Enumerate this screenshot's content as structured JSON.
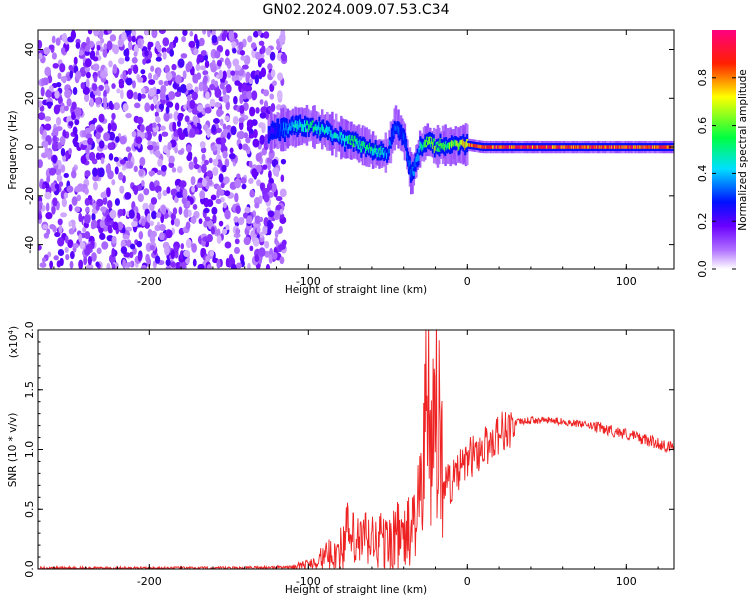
{
  "title": "GN02.2024.009.07.53.C34",
  "chart_data": [
    {
      "type": "heatmap",
      "xlabel": "Height of straight line (km)",
      "ylabel": "Frequency (Hz)",
      "xlim": [
        -270,
        130
      ],
      "ylim": [
        -50,
        48
      ],
      "xticks": [
        -200,
        -100,
        0,
        100
      ],
      "xtick_labels": [
        "-200",
        "-100",
        "0",
        "100"
      ],
      "yticks": [
        -40,
        -20,
        0,
        20,
        40
      ],
      "ytick_labels": [
        "-40",
        "-20",
        "0",
        "20",
        "40"
      ],
      "colorbar": {
        "label": "Normalized spectral amplitude",
        "range": [
          0,
          1
        ],
        "ticks": [
          0.0,
          0.2,
          0.4,
          0.6,
          0.8
        ],
        "tick_labels": [
          "0.0",
          "0.2",
          "0.4",
          "0.6",
          "0.8"
        ],
        "colormap": "rainbow",
        "color_stops": [
          "#ffffff",
          "#8a00ff",
          "#0000ff",
          "#00ffff",
          "#00ff00",
          "#ffff00",
          "#ff0000",
          "#ff0080"
        ]
      },
      "noise_region": {
        "x": [
          -270,
          -115
        ],
        "amplitude": 0.15
      },
      "signal_track": {
        "x": [
          -125,
          -110,
          -100,
          -90,
          -80,
          -70,
          -60,
          -55,
          -50,
          -45,
          -40,
          -35,
          -30,
          -25,
          -20,
          -15,
          -10,
          -5,
          0,
          10,
          30,
          60,
          90,
          130
        ],
        "y": [
          6,
          8,
          9,
          7,
          4,
          2,
          -1,
          -3,
          -2,
          9,
          4,
          -12,
          -1,
          3,
          0,
          1,
          0,
          1,
          1,
          0,
          0,
          0,
          0,
          0
        ],
        "amplitude": [
          0.2,
          0.4,
          0.5,
          0.45,
          0.45,
          0.5,
          0.5,
          0.45,
          0.35,
          0.3,
          0.3,
          0.3,
          0.45,
          0.55,
          0.6,
          0.55,
          0.6,
          0.6,
          0.8,
          0.85,
          0.85,
          0.85,
          0.85,
          0.85
        ]
      }
    },
    {
      "type": "line",
      "xlabel": "Height of straight line (km)",
      "ylabel": "SNR (10 * v/v)",
      "y_multiplier": "(x10",
      "y_multiplier_exponent": "4",
      "y_multiplier_close": ")",
      "xlim": [
        -270,
        130
      ],
      "ylim": [
        0,
        2.0
      ],
      "xticks": [
        -200,
        -100,
        0,
        100
      ],
      "xtick_labels": [
        "-200",
        "-100",
        "0",
        "100"
      ],
      "yticks": [
        0.0,
        0.5,
        1.0,
        1.5,
        2.0
      ],
      "ytick_labels": [
        "0.0",
        "0.5",
        "1.0",
        "1.5",
        "2.0"
      ],
      "color": "#ee2222",
      "series": [
        {
          "x": [
            -270,
            -200,
            -150,
            -110,
            -100,
            -90,
            -80,
            -75,
            -70,
            -65,
            -60,
            -55,
            -50,
            -45,
            -40,
            -35,
            -30,
            -25,
            -22,
            -20,
            -18,
            -15,
            -10,
            -5,
            0,
            5,
            10,
            15,
            20,
            30,
            40,
            50,
            60,
            70,
            80,
            90,
            100,
            110,
            120,
            130
          ],
          "y": [
            0.01,
            0.01,
            0.01,
            0.02,
            0.05,
            0.12,
            0.2,
            0.35,
            0.25,
            0.3,
            0.28,
            0.3,
            0.25,
            0.35,
            0.3,
            0.4,
            0.6,
            1.75,
            1.0,
            2.0,
            1.3,
            0.8,
            0.75,
            0.85,
            0.95,
            1.0,
            1.05,
            1.1,
            1.18,
            1.23,
            1.25,
            1.25,
            1.24,
            1.22,
            1.2,
            1.17,
            1.14,
            1.1,
            1.06,
            1.02
          ]
        }
      ]
    }
  ]
}
